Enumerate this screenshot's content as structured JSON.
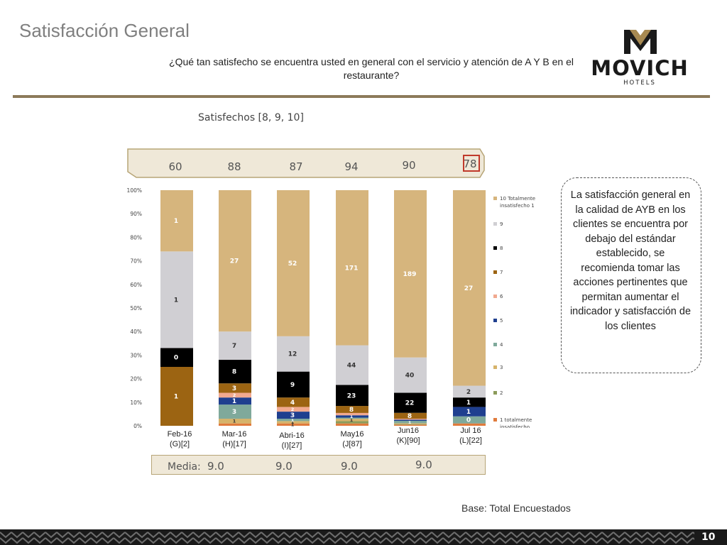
{
  "header": {
    "title": "Satisfacción General",
    "question": "¿Qué tan satisfecho se encuentra usted en general con el servicio y atención de A Y B en el restaurante?"
  },
  "logo": {
    "brand": "MOVICH",
    "sub": "HOTELS",
    "colors": {
      "dark": "#1a1a1a",
      "gold": "#a88a52"
    }
  },
  "satisfechos": {
    "label": "Satisfechos [8, 9, 10]",
    "values": [
      "60",
      "88",
      "87",
      "94",
      "90",
      "78"
    ]
  },
  "media": {
    "label": "Media:",
    "values": [
      "9.0",
      "9.0",
      "9.0",
      "9.0"
    ]
  },
  "callout": {
    "text": "La satisfacción general en la calidad de AYB en los clientes se encuentra por debajo del estándar establecido, se recomienda tomar las acciones pertinentes que permitan aumentar el indicador y satisfacción de los clientes"
  },
  "base": "Base: Total Encuestados",
  "page_number": "10",
  "chart_data": {
    "type": "bar",
    "stacked": true,
    "y_ticks": [
      "0%",
      "10%",
      "20%",
      "30%",
      "40%",
      "50%",
      "60%",
      "70%",
      "80%",
      "90%",
      "100%"
    ],
    "ylim": [
      0,
      100
    ],
    "categories": [
      "Feb-16\n(G)[2]",
      "Mar-16\n(H)[17]",
      "Abri-16\n(I)[27]",
      "May16\n(J[87]",
      "Jun16\n(K)[90]",
      "Jul 16\n(L)[22]"
    ],
    "legend_position": "right",
    "series": [
      {
        "name": "1 totalmente insatisfecho",
        "color": "#e07b3c",
        "pct": [
          0,
          1,
          1,
          1,
          0.5,
          1
        ],
        "labels": [
          "",
          "",
          "1",
          "",
          "",
          ""
        ]
      },
      {
        "name": "2",
        "color": "#8c9b5a",
        "pct": [
          0,
          0,
          0,
          1,
          0.3,
          0
        ],
        "labels": [
          "",
          "",
          "",
          "",
          "",
          ""
        ]
      },
      {
        "name": "3",
        "color": "#d6b36a",
        "pct": [
          0,
          2,
          1,
          1,
          0.3,
          0
        ],
        "labels": [
          "",
          "1",
          "1",
          "1",
          "",
          ""
        ]
      },
      {
        "name": "4",
        "color": "#7fa99b",
        "pct": [
          0,
          6,
          1,
          0.5,
          1,
          3
        ],
        "labels": [
          "",
          "3",
          "1",
          "",
          "1",
          "0"
        ]
      },
      {
        "name": "5",
        "color": "#1f3f8f",
        "pct": [
          0,
          3,
          3,
          1,
          0.5,
          4
        ],
        "labels": [
          "",
          "1",
          "3",
          "1",
          "",
          "1"
        ]
      },
      {
        "name": "6",
        "color": "#f1a98f",
        "pct": [
          0,
          2,
          2,
          1,
          0.4,
          0
        ],
        "labels": [
          "",
          "2",
          "2",
          "",
          "",
          ""
        ]
      },
      {
        "name": "7",
        "color": "#9c6412",
        "pct": [
          25,
          4,
          4,
          3,
          2.5,
          0
        ],
        "labels": [
          "1",
          "3",
          "4",
          "8",
          "8",
          ""
        ]
      },
      {
        "name": "8",
        "color": "#000000",
        "pct": [
          8,
          10,
          11,
          9,
          8.5,
          4
        ],
        "labels": [
          "0",
          "8",
          "9",
          "23",
          "22",
          "1"
        ]
      },
      {
        "name": "9",
        "color": "#d0cfd3",
        "pct": [
          41,
          12,
          15,
          17,
          15,
          5
        ],
        "labels": [
          "1",
          "7",
          "12",
          "44",
          "40",
          "2"
        ]
      },
      {
        "name": "10 Totalmente insatisfecho 1",
        "color": "#d6b57d",
        "pct": [
          26,
          60,
          62,
          66.5,
          71,
          83
        ],
        "labels": [
          "1",
          "27",
          "52",
          "171",
          "189",
          "27"
        ]
      }
    ]
  }
}
